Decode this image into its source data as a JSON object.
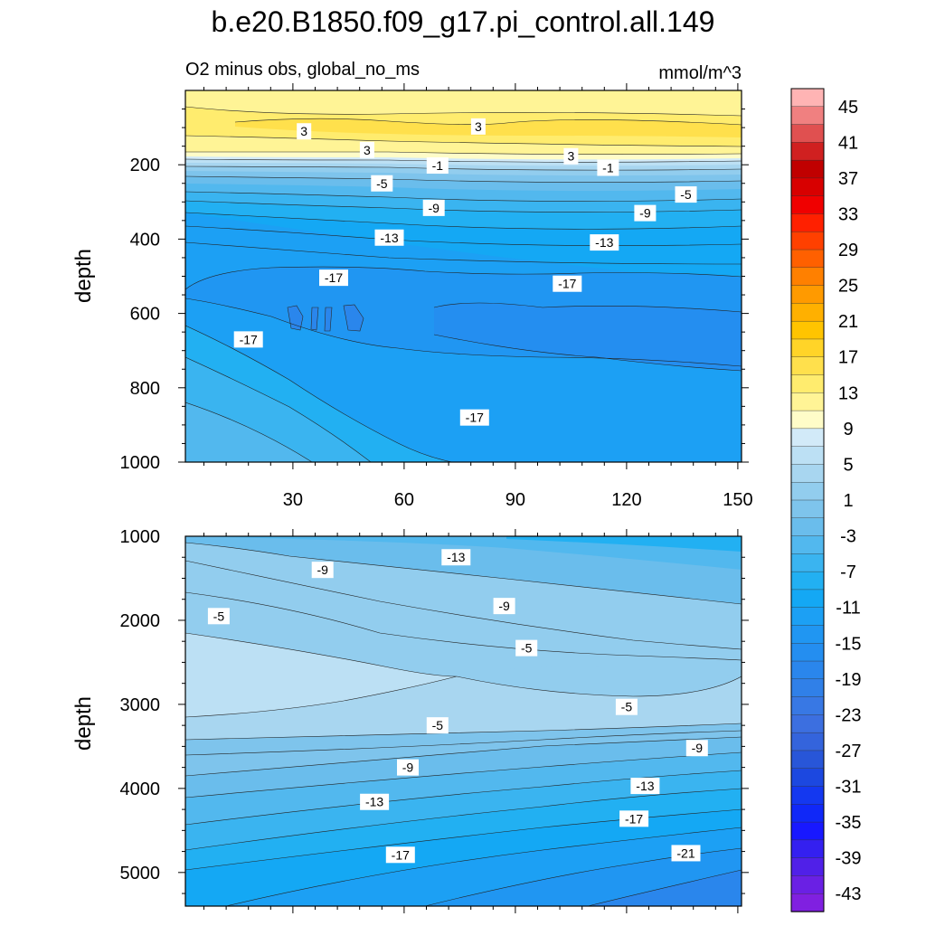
{
  "chart_data": {
    "type": "contour",
    "title": "b.e20.B1850.f09_g17.pi_control.all.149",
    "subtitle_left": "O2 minus obs, global_no_ms",
    "subtitle_right": "mmol/m^3",
    "x_ticks": [
      "30",
      "60",
      "90",
      "120",
      "150"
    ],
    "x_range": [
      1,
      151
    ],
    "panels": [
      {
        "name": "upper",
        "ylabel": "depth",
        "y_range": [
          0,
          1000
        ],
        "y_ticks": [
          "200",
          "400",
          "600",
          "800",
          "1000"
        ],
        "y_tick_values": [
          200,
          400,
          600,
          800,
          1000
        ],
        "contour_labels": [
          {
            "text": "3",
            "x": 33,
            "y": 110
          },
          {
            "text": "3",
            "x": 80,
            "y": 97
          },
          {
            "text": "3",
            "x": 50,
            "y": 160
          },
          {
            "text": "3",
            "x": 105,
            "y": 177
          },
          {
            "text": "-1",
            "x": 69,
            "y": 202
          },
          {
            "text": "-1",
            "x": 115,
            "y": 208
          },
          {
            "text": "-5",
            "x": 54,
            "y": 250
          },
          {
            "text": "-5",
            "x": 136,
            "y": 280
          },
          {
            "text": "-9",
            "x": 68,
            "y": 316
          },
          {
            "text": "-9",
            "x": 125,
            "y": 330
          },
          {
            "text": "-13",
            "x": 56,
            "y": 396
          },
          {
            "text": "-13",
            "x": 114,
            "y": 409
          },
          {
            "text": "-17",
            "x": 41,
            "y": 504
          },
          {
            "text": "-17",
            "x": 104,
            "y": 520
          },
          {
            "text": "-17",
            "x": 18,
            "y": 670
          },
          {
            "text": "-17",
            "x": 79,
            "y": 880
          }
        ]
      },
      {
        "name": "lower",
        "ylabel": "depth",
        "y_range": [
          1000,
          5400
        ],
        "y_ticks": [
          "1000",
          "2000",
          "3000",
          "4000",
          "5000"
        ],
        "y_tick_values": [
          1000,
          2000,
          3000,
          4000,
          5000
        ],
        "contour_labels": [
          {
            "text": "-13",
            "x": 74,
            "y": 1250
          },
          {
            "text": "-9",
            "x": 38,
            "y": 1400
          },
          {
            "text": "-9",
            "x": 87,
            "y": 1830
          },
          {
            "text": "-5",
            "x": 10,
            "y": 1950
          },
          {
            "text": "-5",
            "x": 93,
            "y": 2330
          },
          {
            "text": "-5",
            "x": 120,
            "y": 3030
          },
          {
            "text": "-5",
            "x": 69,
            "y": 3250
          },
          {
            "text": "-9",
            "x": 139,
            "y": 3520
          },
          {
            "text": "-9",
            "x": 61,
            "y": 3750
          },
          {
            "text": "-13",
            "x": 125,
            "y": 3970
          },
          {
            "text": "-13",
            "x": 52,
            "y": 4160
          },
          {
            "text": "-17",
            "x": 122,
            "y": 4360
          },
          {
            "text": "-17",
            "x": 59,
            "y": 4790
          },
          {
            "text": "-21",
            "x": 136,
            "y": 4770
          }
        ]
      }
    ],
    "colorbar": {
      "labels": [
        "45",
        "41",
        "37",
        "33",
        "29",
        "25",
        "21",
        "17",
        "13",
        "9",
        "5",
        "1",
        "-3",
        "-7",
        "-11",
        "-15",
        "-19",
        "-23",
        "-27",
        "-31",
        "-35",
        "-39",
        "-43"
      ],
      "colors": [
        "#ffb4b4",
        "#f08080",
        "#e05050",
        "#d02020",
        "#c00000",
        "#d80000",
        "#f00000",
        "#ff2000",
        "#ff4000",
        "#ff6000",
        "#ff8000",
        "#ff9a00",
        "#ffb000",
        "#ffc400",
        "#ffd428",
        "#ffe04c",
        "#ffec6e",
        "#fff496",
        "#fffcc8",
        "#d2eaf8",
        "#bce0f4",
        "#a8d6f0",
        "#92cdee",
        "#7ec4ec",
        "#6abdec",
        "#52b8ee",
        "#3ab4f0",
        "#22b0f2",
        "#14a8f4",
        "#1ca0f4",
        "#2096f2",
        "#248ef0",
        "#2a86ec",
        "#3080e8",
        "#3878e4",
        "#3c6fe0",
        "#3464dc",
        "#2856d8",
        "#1c48e0",
        "#1438f0",
        "#1028f8",
        "#1818ff",
        "#3420f0",
        "#5020e8",
        "#6a20e4",
        "#8020e0"
      ]
    }
  }
}
